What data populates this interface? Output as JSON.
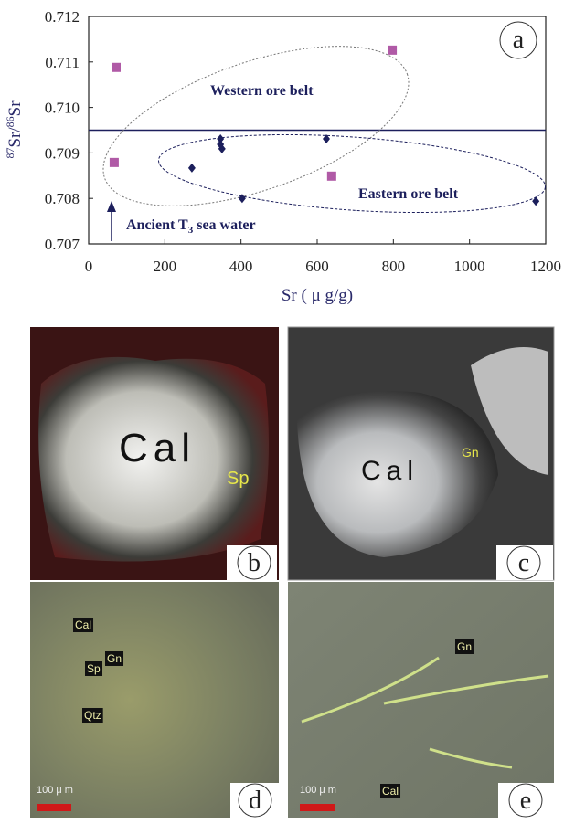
{
  "chart_data": {
    "type": "scatter",
    "x_label": "Sr ( μ g/g)",
    "y_label_parts": [
      "87",
      "Sr/",
      "86",
      "Sr"
    ],
    "panel_label": "a",
    "annotations": [
      "Western ore belt",
      "Eastern ore belt"
    ],
    "arrow_label_parts": [
      "Ancient T",
      "3",
      " sea water"
    ],
    "xlim": [
      0,
      1200
    ],
    "xticks": [
      0,
      200,
      400,
      600,
      800,
      1000,
      1200
    ],
    "ylim": [
      0.707,
      0.712
    ],
    "yticks": [
      0.707,
      0.708,
      0.709,
      {
        "value": 0.71,
        "label": "0.710"
      },
      0.711,
      0.712
    ],
    "hline": 0.7095,
    "series": [
      {
        "color": "#b05aa6",
        "marker": "square",
        "x": [
          72,
          67,
          797,
          638
        ],
        "values": [
          0.71088,
          0.70879,
          0.71126,
          0.70849
        ]
      },
      {
        "color": "#1c1f5c",
        "marker": "diamond",
        "x": [
          271,
          346,
          346,
          350,
          403,
          624,
          1174
        ],
        "values": [
          0.70867,
          0.70931,
          0.70919,
          0.70909,
          0.708,
          0.70931,
          0.70794
        ]
      }
    ]
  },
  "panels": [
    {
      "label": "b",
      "texts": [
        "Cal",
        "Sp"
      ]
    },
    {
      "label": "c",
      "texts": [
        "Cal",
        "Gn"
      ]
    },
    {
      "label": "d",
      "texts": [
        "Cal",
        "Sp",
        "Gn",
        "Qtz",
        "100 μ m"
      ]
    },
    {
      "label": "e",
      "texts": [
        "Gn",
        "Cal",
        "100 μ m"
      ]
    }
  ]
}
